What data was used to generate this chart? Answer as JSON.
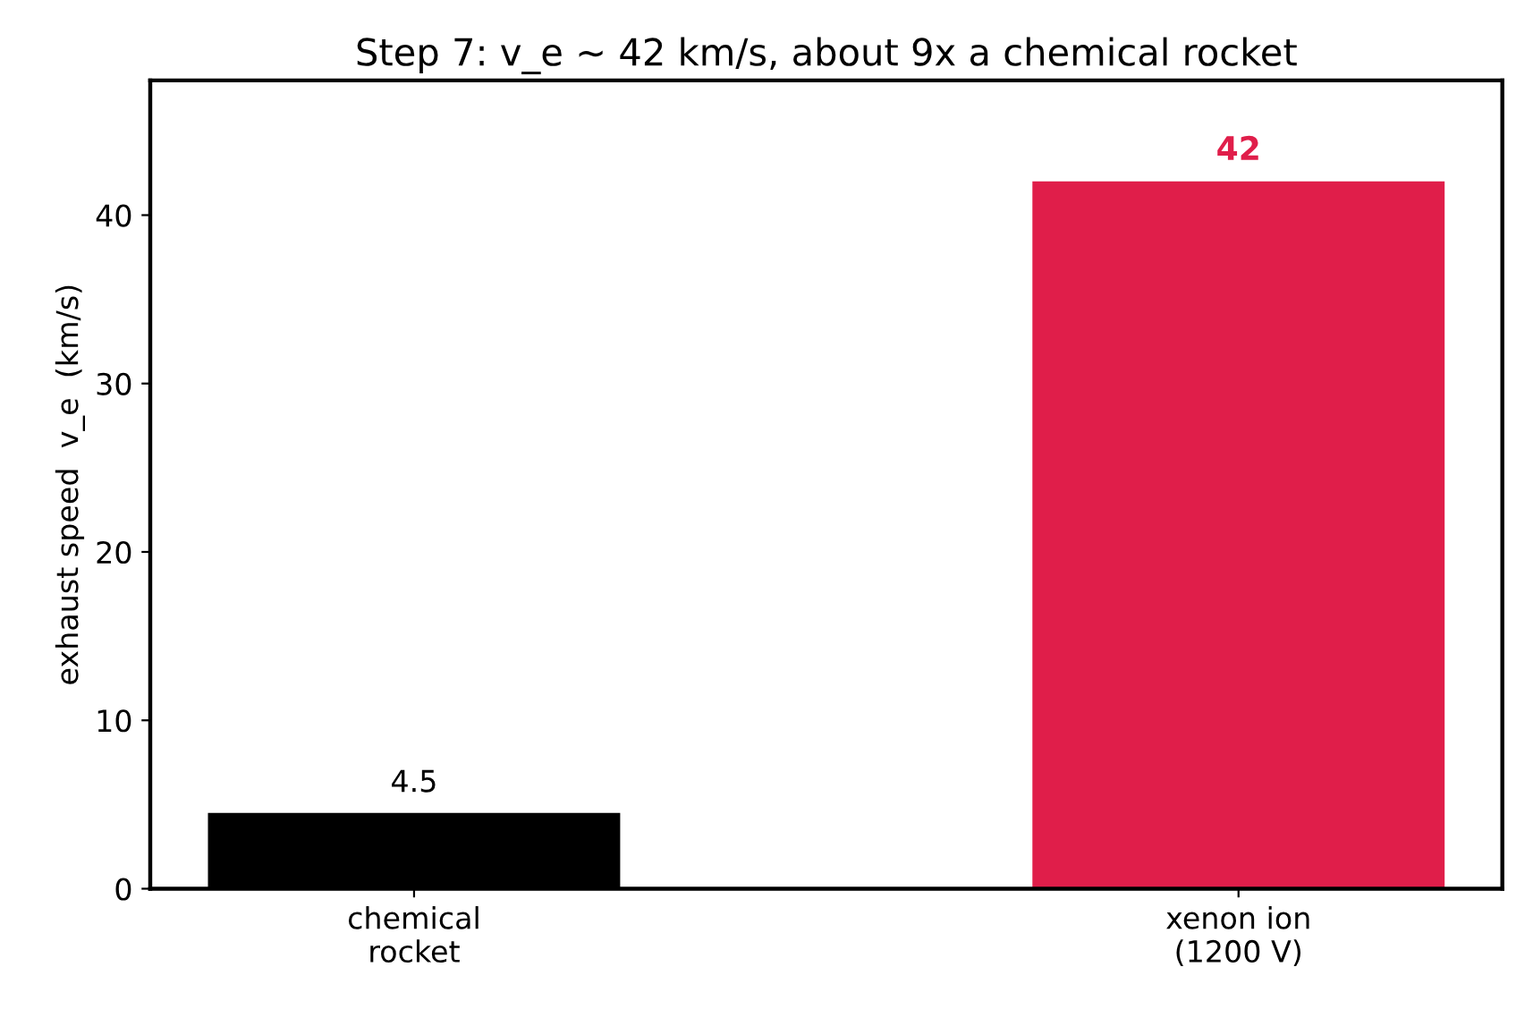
{
  "chart_data": {
    "type": "bar",
    "title": "Step 7: v_e ~ 42 km/s, about 9x a chemical rocket",
    "ylabel": "exhaust speed  v_e  (km/s)",
    "categories": [
      "chemical\nrocket",
      "xenon ion\n(1200 V)"
    ],
    "values": [
      4.5,
      42
    ],
    "colors": [
      "#000000",
      "#e01e4a"
    ],
    "ylim": [
      0,
      48
    ],
    "yticks": [
      0,
      10,
      20,
      30,
      40
    ],
    "data_labels": true,
    "grid": false,
    "legend": false
  }
}
